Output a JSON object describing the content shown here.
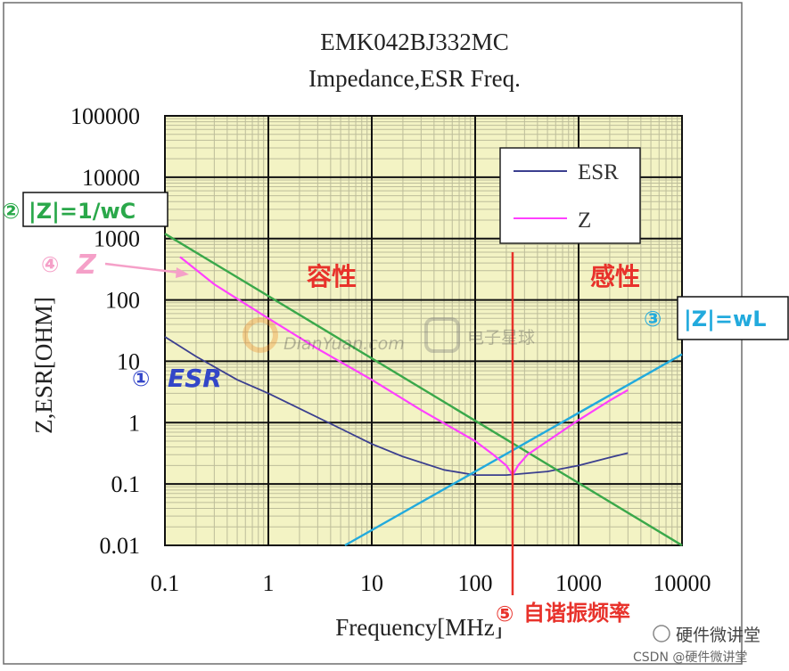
{
  "chart_data": {
    "type": "line",
    "title": "EMK042BJ332MC",
    "subtitle": "Impedance,ESR Freq.",
    "xlabel": "Frequency[MHz]",
    "ylabel": "Z,ESR[OHM]",
    "x_scale": "log",
    "y_scale": "log",
    "xlim": [
      0.1,
      10000
    ],
    "ylim": [
      0.01,
      100000
    ],
    "x_ticks": [
      "0.1",
      "1",
      "10",
      "100",
      "1000",
      "10000"
    ],
    "y_ticks": [
      "0.01",
      "0.1",
      "1",
      "10",
      "100",
      "1000",
      "10000",
      "100000"
    ],
    "grid": true,
    "legend": "top-right",
    "series": [
      {
        "name": "ESR",
        "color": "#3b3f8f",
        "x": [
          0.1,
          0.2,
          0.5,
          1,
          2,
          5,
          10,
          20,
          50,
          100,
          200,
          500,
          1000,
          2000,
          3000
        ],
        "y": [
          25,
          12,
          5,
          3,
          1.7,
          0.8,
          0.45,
          0.28,
          0.17,
          0.14,
          0.14,
          0.16,
          0.2,
          0.27,
          0.32
        ]
      },
      {
        "name": "Z",
        "color": "#ff40ff",
        "x": [
          0.14,
          0.3,
          1,
          3,
          10,
          30,
          100,
          150,
          200,
          230,
          260,
          320,
          500,
          1000,
          2000,
          3000
        ],
        "y": [
          500,
          180,
          50,
          16,
          5,
          1.6,
          0.5,
          0.3,
          0.2,
          0.14,
          0.2,
          0.3,
          0.5,
          1.1,
          2.3,
          3.4
        ]
      },
      {
        "color": "#3aa84a",
        "x": [
          0.1,
          10000
        ],
        "y": [
          1200,
          0.01
        ]
      },
      {
        "color": "#22aadd",
        "x": [
          5.5,
          10000
        ],
        "y": [
          0.01,
          13
        ]
      }
    ],
    "annotations": {
      "zc": "|Z|=1/wC",
      "zc_num": "②",
      "zl": "|Z|=wL",
      "zl_num": "③",
      "esr": "ESR",
      "esr_num": "①",
      "z": "Z",
      "z_num": "④",
      "capacitive": "容性",
      "inductive": "感性",
      "srf": "自谐振频率",
      "srf_num": "⑤",
      "srf_x": 230
    }
  },
  "watermark": {
    "brand1": "DianYuan.com",
    "brand2": "电子星球",
    "wechat": "硬件微讲堂",
    "csdn": "CSDN @硬件微讲堂"
  },
  "colors": {
    "plot_bg": "#f3f3c4",
    "grid_major": "#111111",
    "grid_minor": "#bdbd9a",
    "annot_red": "#e8322b",
    "annot_green": "#2aa84a",
    "annot_blue": "#22aadd",
    "annot_esr": "#3346c8",
    "annot_pink": "#f5a0c8"
  }
}
